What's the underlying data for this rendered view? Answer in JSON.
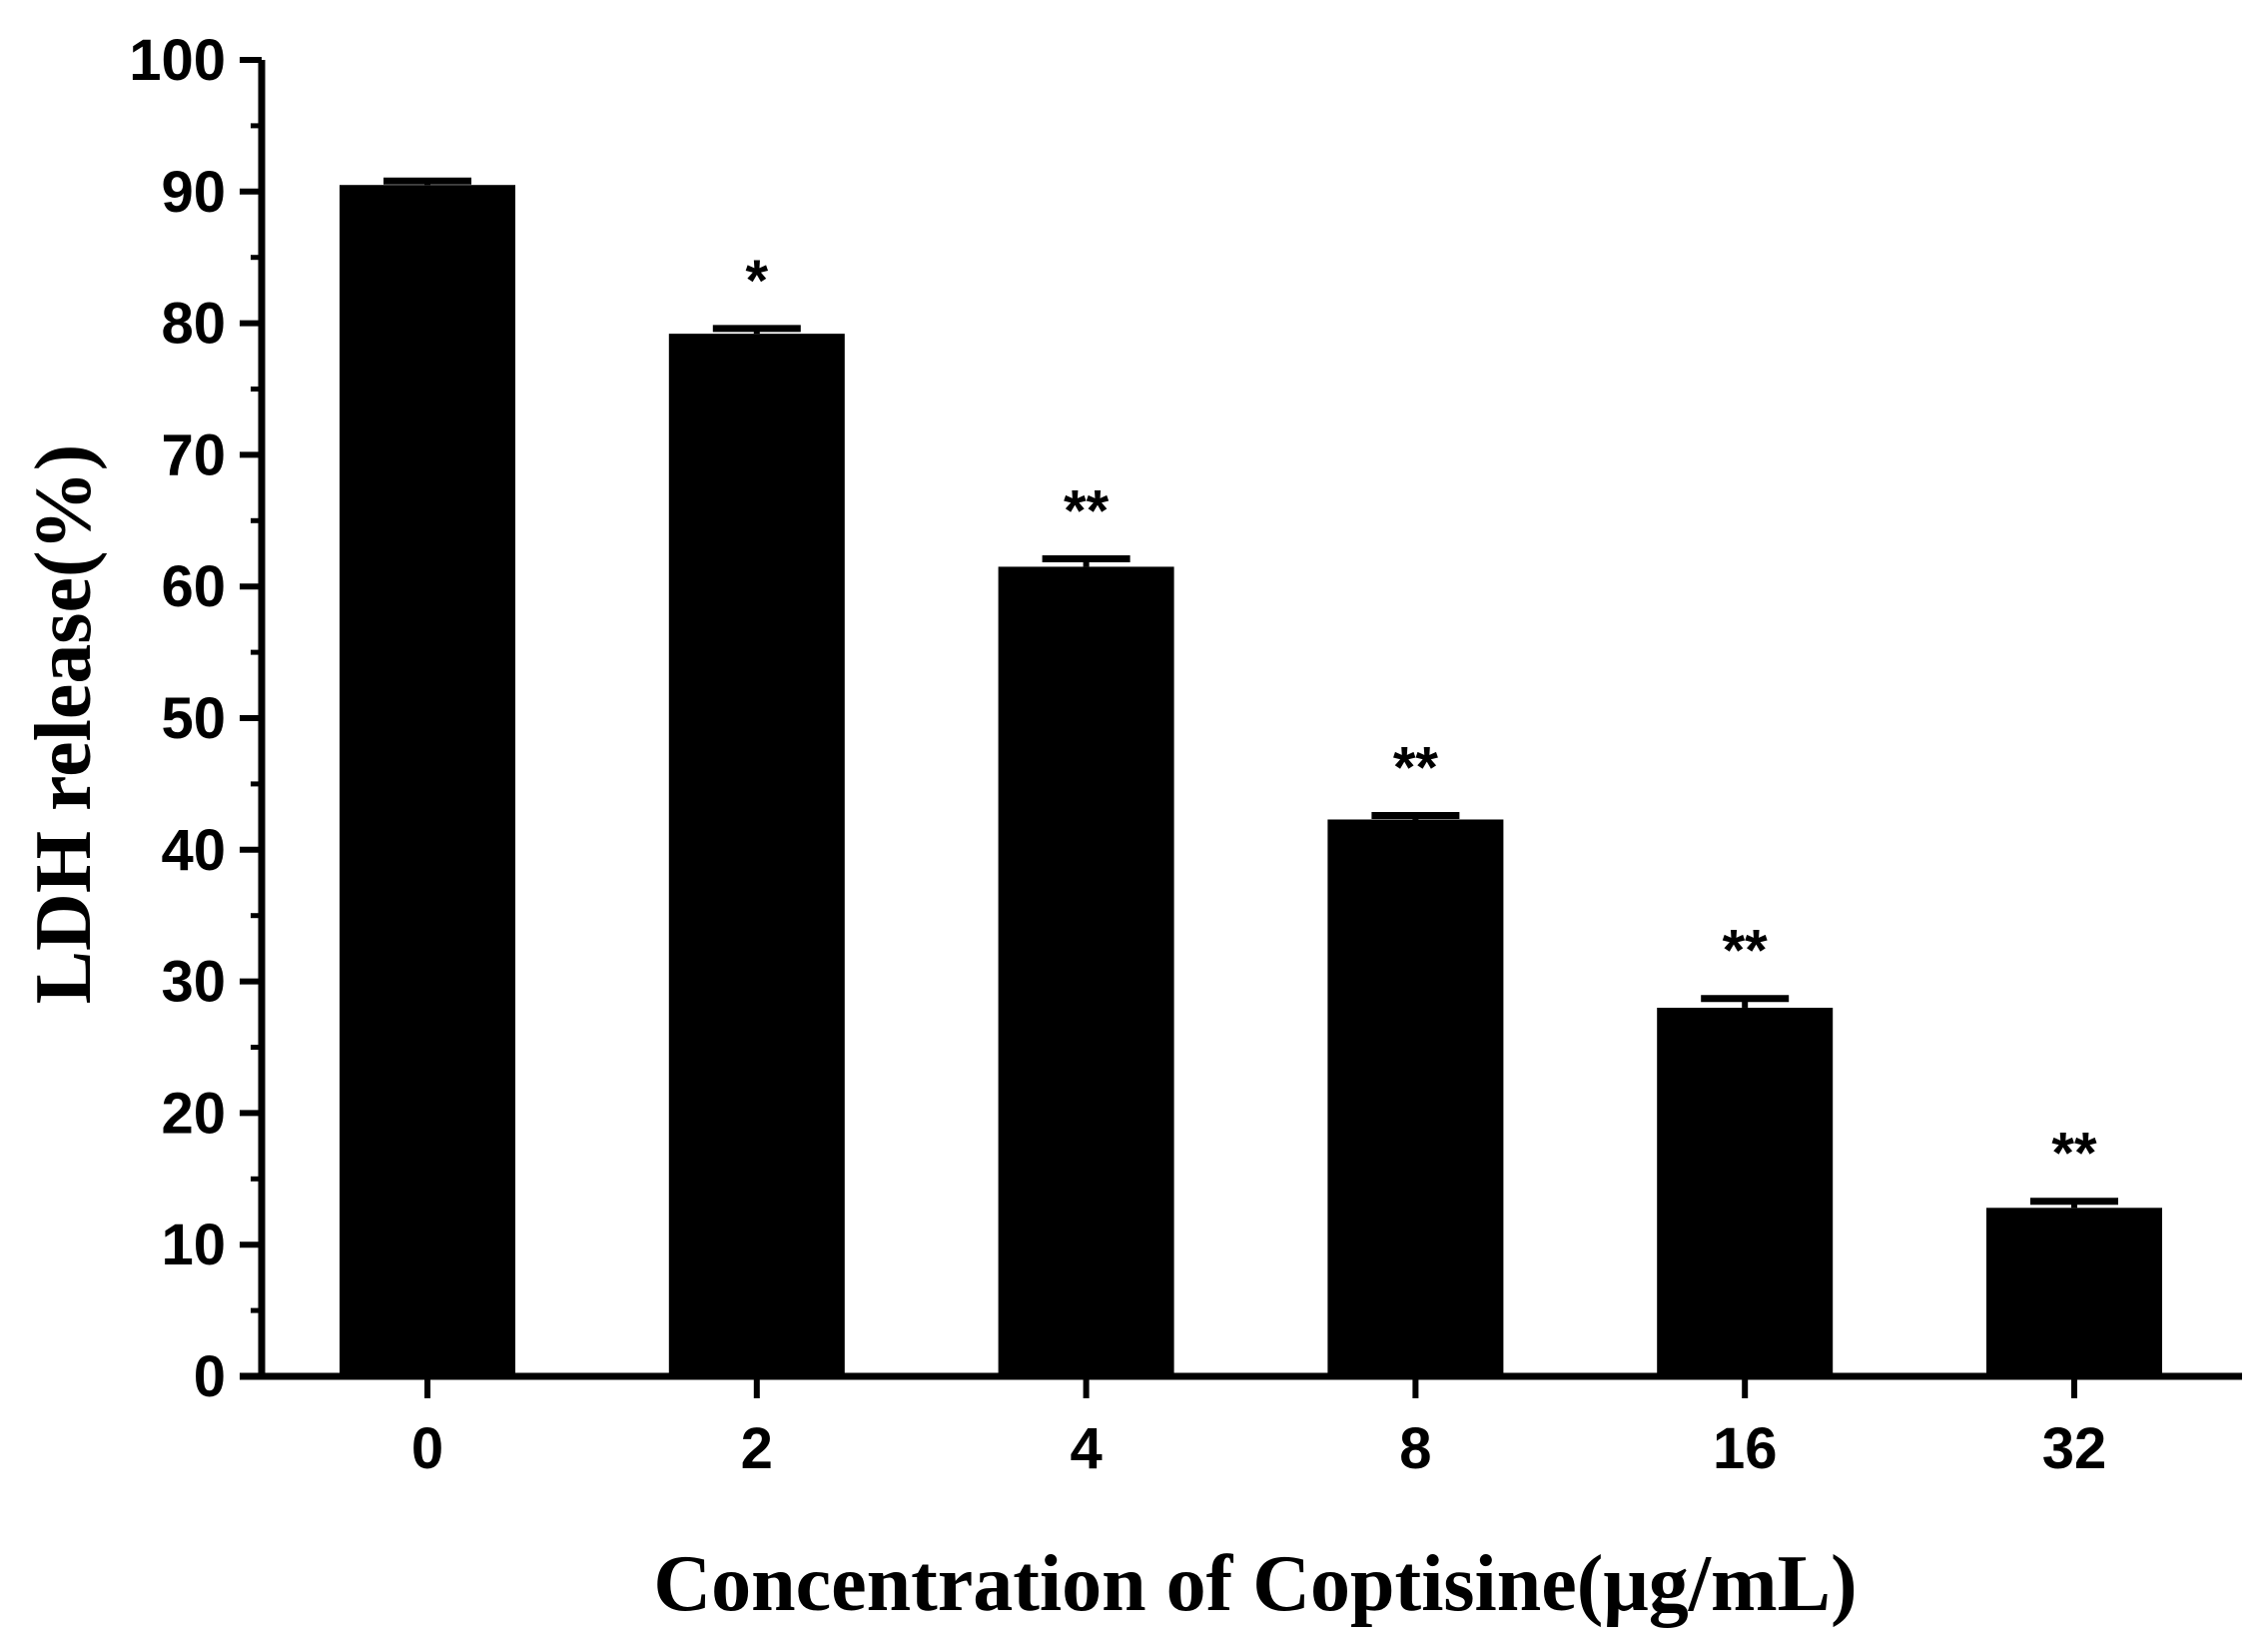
{
  "chart_data": {
    "type": "bar",
    "title": "",
    "xlabel": "Concentration of Coptisine(μg/mL)",
    "ylabel": "LDH release(%)",
    "categories": [
      "0",
      "2",
      "4",
      "8",
      "16",
      "32"
    ],
    "values": [
      90.5,
      79.2,
      61.5,
      42.3,
      28.0,
      12.8
    ],
    "errors": [
      0.3,
      0.4,
      0.6,
      0.3,
      0.7,
      0.5
    ],
    "significance": [
      "",
      "*",
      "**",
      "**",
      "**",
      "**"
    ],
    "ylim": [
      0,
      100
    ],
    "yticks": [
      "0",
      "10",
      "20",
      "30",
      "40",
      "50",
      "60",
      "70",
      "80",
      "90",
      "100"
    ],
    "ytick_values": [
      0,
      10,
      20,
      30,
      40,
      50,
      60,
      70,
      80,
      90,
      100
    ],
    "minor_tick_step": 5,
    "grid": false,
    "bar_color": "#000000",
    "axis_color": "#000000"
  }
}
